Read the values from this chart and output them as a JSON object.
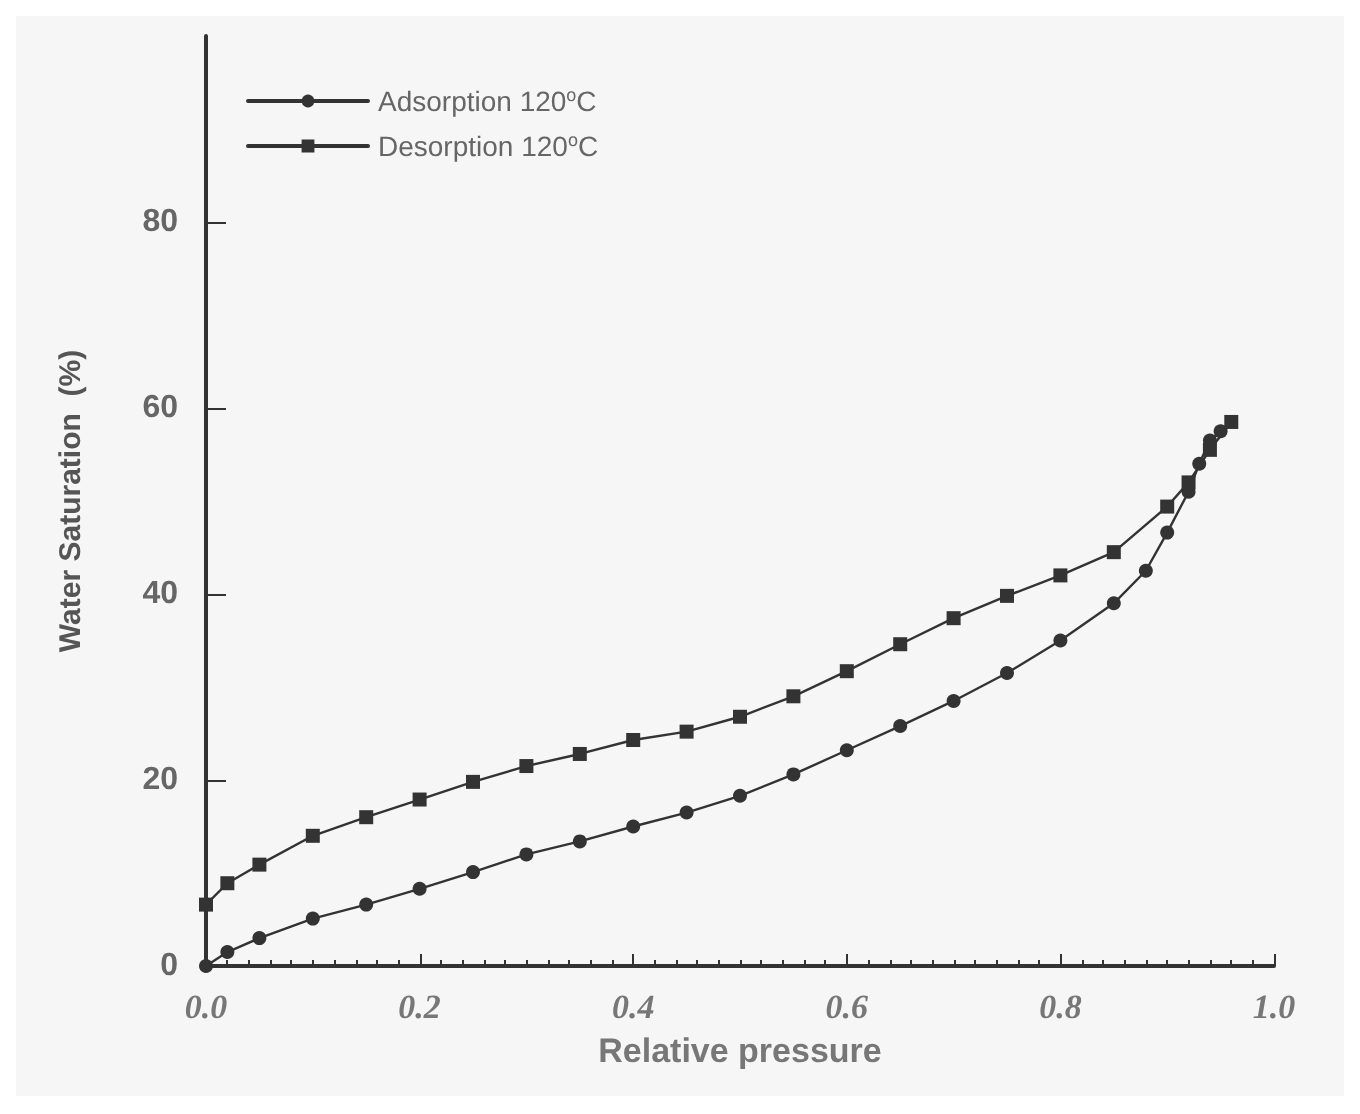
{
  "chart_data": {
    "type": "line",
    "xlabel": "Relative pressure",
    "ylabel": "Water Saturation  (%)",
    "xlim": [
      0,
      1
    ],
    "ylim": [
      0,
      100
    ],
    "xticks": [
      {
        "value": 0,
        "label": "0.0"
      },
      {
        "value": 0.2,
        "label": "0.2"
      },
      {
        "value": 0.4,
        "label": "0.4"
      },
      {
        "value": 0.6,
        "label": "0.6"
      },
      {
        "value": 0.8,
        "label": "0.8"
      },
      {
        "value": 1,
        "label": "1.0"
      }
    ],
    "yticks": [
      0,
      20,
      40,
      60,
      80
    ],
    "grid": false,
    "legend": "top left",
    "line_style": "solid",
    "series": [
      {
        "name": "Adsorption 120$^{o}$C",
        "color": "#333333",
        "marker": "circle",
        "x": [
          0,
          0.02,
          0.05,
          0.1,
          0.15,
          0.2,
          0.25,
          0.3,
          0.35,
          0.4,
          0.45,
          0.5,
          0.55,
          0.6,
          0.65,
          0.7,
          0.75,
          0.8,
          0.85,
          0.88,
          0.9,
          0.92,
          0.93,
          0.94,
          0.95
        ],
        "values": [
          0,
          1.5,
          3,
          5.1,
          6.6,
          8.3,
          10.1,
          12,
          13.4,
          15,
          16.5,
          18.3,
          20.6,
          23.2,
          25.8,
          28.5,
          31.5,
          35,
          39,
          42.5,
          46.6,
          51,
          54,
          56.5,
          57.5
        ]
      },
      {
        "name": "Desorption 120$^{o}$C",
        "color": "#333333",
        "marker": "square",
        "x": [
          0.96,
          0.94,
          0.92,
          0.9,
          0.85,
          0.8,
          0.75,
          0.7,
          0.65,
          0.6,
          0.55,
          0.5,
          0.45,
          0.4,
          0.35,
          0.3,
          0.25,
          0.2,
          0.15,
          0.1,
          0.05,
          0.02,
          0
        ],
        "values": [
          58.5,
          55.5,
          52,
          49.4,
          44.5,
          42,
          39.8,
          37.4,
          34.6,
          31.7,
          29,
          26.8,
          25.2,
          24.3,
          22.8,
          21.5,
          19.8,
          17.9,
          16,
          14,
          10.9,
          8.9,
          6.6
        ]
      }
    ]
  }
}
